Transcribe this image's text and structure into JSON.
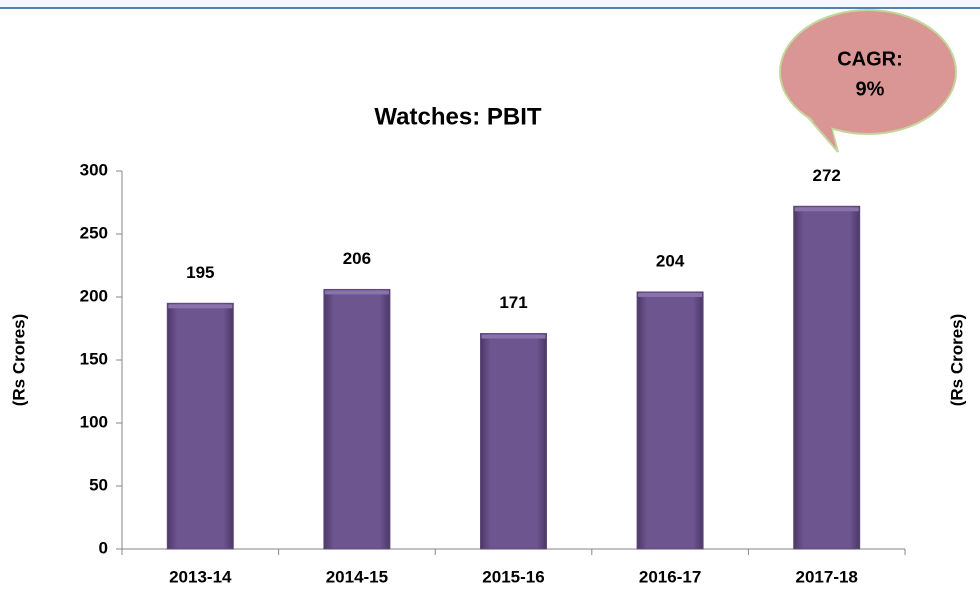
{
  "chart_data": {
    "type": "bar",
    "title": "Watches: PBIT",
    "y_label": "(Rs Crores)",
    "right_label": "(Rs Crores)",
    "annotation": [
      "CAGR:",
      "9%"
    ],
    "categories": [
      "2013-14",
      "2014-15",
      "2015-16",
      "2016-17",
      "2017-18"
    ],
    "values": [
      195,
      206,
      171,
      204,
      272
    ],
    "color": "#604a7b",
    "ylim": [
      0,
      300
    ],
    "yticks": [
      0,
      50,
      100,
      150,
      200,
      250,
      300
    ],
    "grid": false
  }
}
